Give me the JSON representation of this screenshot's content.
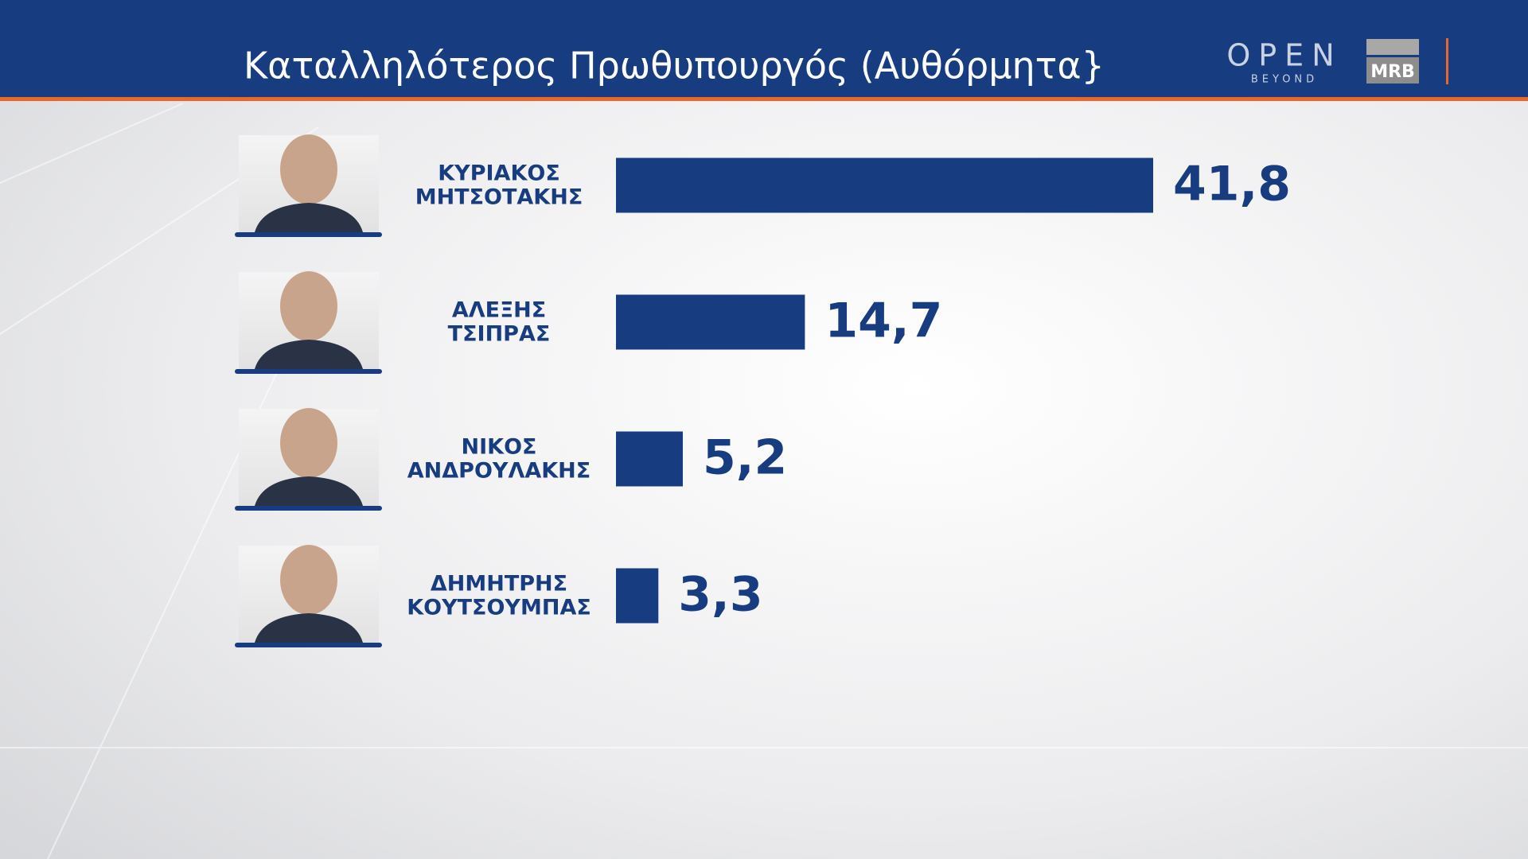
{
  "chart_data": {
    "type": "bar",
    "orientation": "horizontal",
    "title": "Καταλληλότερος Πρωθυπουργός (Αυθόρμητα}",
    "categories": [
      [
        "ΚΥΡΙΑΚΟΣ",
        "ΜΗΤΣΟΤΑΚΗΣ"
      ],
      [
        "ΑΛΕΞΗΣ",
        "ΤΣΙΠΡΑΣ"
      ],
      [
        "ΝΙΚΟΣ",
        "ΑΝΔΡΟΥΛΑΚΗΣ"
      ],
      [
        "ΔΗΜΗΤΡΗΣ",
        "ΚΟΥΤΣΟΥΜΠΑΣ"
      ]
    ],
    "values": [
      41.8,
      14.7,
      5.2,
      3.3
    ],
    "value_labels": [
      "41,8",
      "14,7",
      "5,2",
      "3,3"
    ],
    "color": "#173d80"
  },
  "branding": {
    "channel": "OPEN",
    "tagline": "BEYOND",
    "pollster": "MRB"
  }
}
